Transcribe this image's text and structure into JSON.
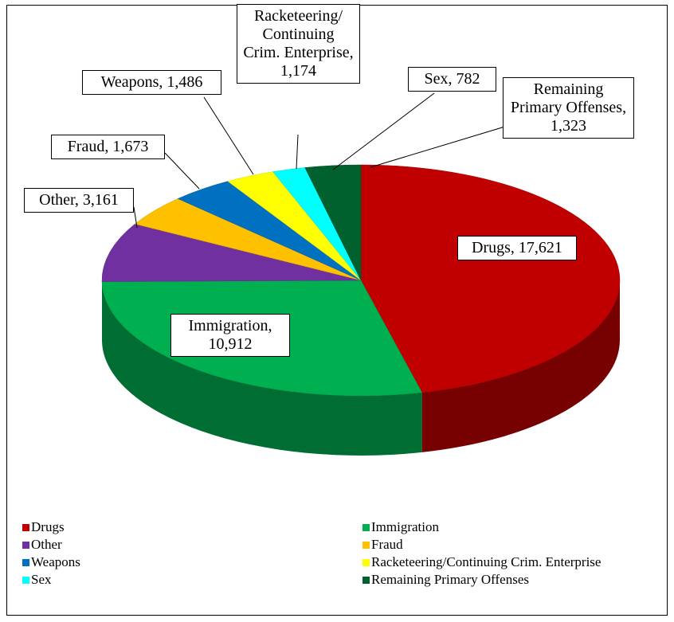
{
  "chart_data": {
    "type": "pie3d",
    "categories": [
      "Drugs",
      "Immigration",
      "Other",
      "Fraud",
      "Weapons",
      "Racketeering/Continuing Crim. Enterprise",
      "Sex",
      "Remaining Primary Offenses"
    ],
    "values": [
      17621,
      10912,
      3161,
      1673,
      1486,
      1174,
      782,
      1323
    ],
    "data_labels": [
      "Drugs, 17,621",
      "Immigration, 10,912",
      "Other, 3,161",
      "Fraud, 1,673",
      "Weapons, 1,486",
      "Racketeering/ Continuing Crim. Enterprise, 1,174",
      "Sex, 782",
      "Remaining Primary Offenses, 1,323"
    ],
    "colors": [
      "#c00000",
      "#00b050",
      "#7030a0",
      "#ffc000",
      "#0070c0",
      "#ffff00",
      "#00ffff",
      "#00602e"
    ],
    "legend": "bottom"
  }
}
